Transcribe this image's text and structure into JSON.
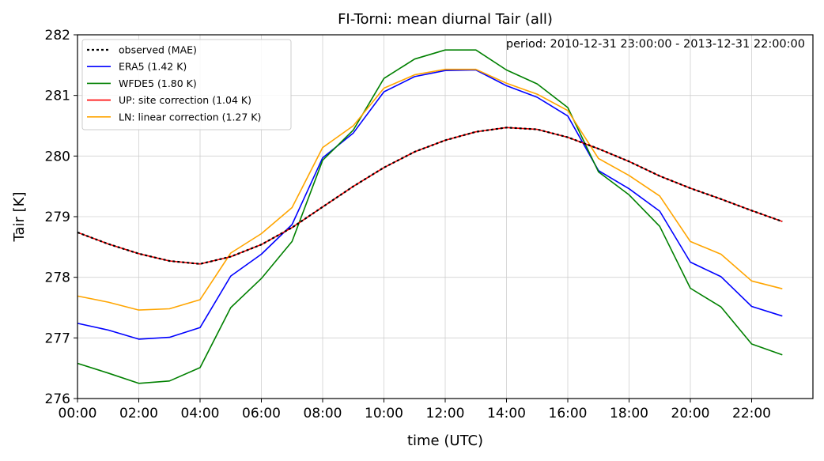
{
  "chart_data": {
    "type": "line",
    "title": "FI-Torni: mean diurnal Tair (all)",
    "xlabel": "time (UTC)",
    "ylabel": "Tair [K]",
    "annotation": "period: 2010-12-31 23:00:00 - 2013-12-31 22:00:00",
    "x": [
      0,
      1,
      2,
      3,
      4,
      5,
      6,
      7,
      8,
      9,
      10,
      11,
      12,
      13,
      14,
      15,
      16,
      17,
      18,
      19,
      20,
      21,
      22,
      23
    ],
    "xlim": [
      0,
      24
    ],
    "ylim": [
      276,
      282
    ],
    "xticks": [
      0,
      2,
      4,
      6,
      8,
      10,
      12,
      14,
      16,
      18,
      20,
      22
    ],
    "xtick_labels": [
      "00:00",
      "02:00",
      "04:00",
      "06:00",
      "08:00",
      "10:00",
      "12:00",
      "14:00",
      "16:00",
      "18:00",
      "20:00",
      "22:00"
    ],
    "yticks": [
      276,
      277,
      278,
      279,
      280,
      281,
      282
    ],
    "ytick_labels": [
      "276",
      "277",
      "278",
      "279",
      "280",
      "281",
      "282"
    ],
    "grid": true,
    "legend_position": "upper-left",
    "series": [
      {
        "name": "observed (MAE)",
        "color": "#000000",
        "style": "dotted",
        "values": [
          278.74,
          278.55,
          278.39,
          278.27,
          278.22,
          278.34,
          278.54,
          278.82,
          279.16,
          279.5,
          279.81,
          280.07,
          280.26,
          280.4,
          280.47,
          280.44,
          280.31,
          280.12,
          279.91,
          279.67,
          279.47,
          279.29,
          279.1,
          278.92
        ]
      },
      {
        "name": "ERA5 (1.42 K)",
        "color": "#0000ff",
        "style": "solid",
        "values": [
          277.24,
          277.13,
          276.98,
          277.01,
          277.17,
          278.02,
          278.38,
          278.87,
          279.97,
          280.38,
          281.06,
          281.31,
          281.41,
          281.42,
          281.16,
          280.97,
          280.66,
          279.76,
          279.46,
          279.09,
          278.25,
          278.01,
          277.52,
          277.36
        ]
      },
      {
        "name": "WFDE5 (1.80 K)",
        "color": "#008000",
        "style": "solid",
        "values": [
          276.58,
          276.42,
          276.25,
          276.29,
          276.51,
          277.5,
          277.98,
          278.59,
          279.93,
          280.43,
          281.28,
          281.6,
          281.75,
          281.75,
          281.42,
          281.19,
          280.8,
          279.74,
          279.36,
          278.84,
          277.82,
          277.51,
          276.9,
          276.72
        ]
      },
      {
        "name": "UP: site correction (1.04 K)",
        "color": "#ff0000",
        "style": "solid",
        "values": [
          278.74,
          278.55,
          278.39,
          278.27,
          278.22,
          278.34,
          278.54,
          278.82,
          279.16,
          279.5,
          279.81,
          280.07,
          280.26,
          280.4,
          280.47,
          280.44,
          280.31,
          280.12,
          279.91,
          279.67,
          279.47,
          279.29,
          279.1,
          278.92
        ]
      },
      {
        "name": "LN: linear correction (1.27 K)",
        "color": "#ffa500",
        "style": "solid",
        "values": [
          277.69,
          277.59,
          277.46,
          277.48,
          277.63,
          278.4,
          278.72,
          279.15,
          280.14,
          280.5,
          281.12,
          281.34,
          281.43,
          281.43,
          281.2,
          281.02,
          280.75,
          279.96,
          279.68,
          279.34,
          278.59,
          278.38,
          277.94,
          277.81
        ]
      }
    ]
  }
}
